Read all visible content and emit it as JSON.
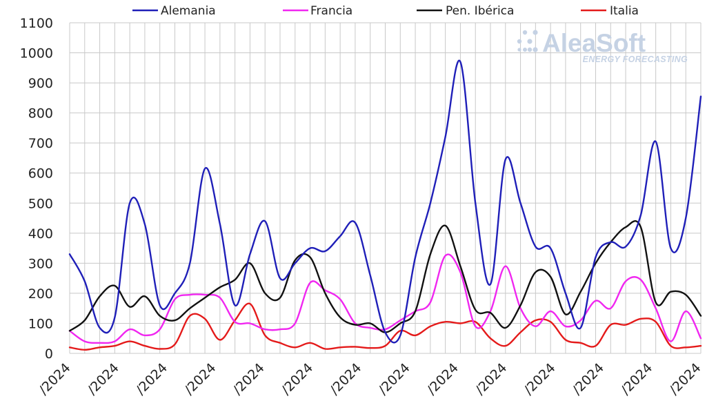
{
  "chart_data": {
    "type": "line",
    "title": "",
    "xlabel": "",
    "ylabel": "",
    "ylim": [
      0,
      1100
    ],
    "yticks": [
      0,
      100,
      200,
      300,
      400,
      500,
      600,
      700,
      800,
      900,
      1000,
      1100
    ],
    "grid": true,
    "legend_position": "top",
    "x_tick_labels": [
      "/2024",
      "/2024",
      "/2024",
      "/2024",
      "/2024",
      "/2024",
      "/2024",
      "/2024",
      "/2024",
      "/2024",
      "/2024",
      "/2024",
      "/2024",
      "/2024"
    ],
    "watermark": {
      "brand": "AleaSoft",
      "tagline": "ENERGY FORECASTING"
    },
    "series": [
      {
        "name": "Alemania",
        "color": "#1f1fb8",
        "values": [
          330,
          240,
          85,
          120,
          500,
          430,
          160,
          200,
          300,
          615,
          430,
          160,
          330,
          440,
          250,
          300,
          350,
          340,
          390,
          435,
          260,
          70,
          60,
          320,
          500,
          720,
          970,
          500,
          230,
          645,
          500,
          355,
          350,
          200,
          85,
          320,
          370,
          355,
          460,
          705,
          350,
          450,
          855
        ]
      },
      {
        "name": "Francia",
        "color": "#f027f0",
        "values": [
          75,
          40,
          35,
          40,
          80,
          60,
          80,
          180,
          195,
          195,
          185,
          105,
          100,
          80,
          80,
          100,
          235,
          210,
          180,
          100,
          85,
          80,
          110,
          140,
          170,
          325,
          270,
          90,
          140,
          290,
          150,
          90,
          140,
          90,
          110,
          175,
          150,
          240,
          245,
          150,
          40,
          140,
          50
        ]
      },
      {
        "name": "Pen. Ibérica",
        "color": "#111111",
        "values": [
          75,
          110,
          190,
          225,
          155,
          190,
          125,
          110,
          150,
          185,
          220,
          245,
          300,
          200,
          185,
          310,
          320,
          200,
          120,
          95,
          100,
          70,
          100,
          140,
          330,
          425,
          290,
          145,
          135,
          85,
          160,
          270,
          255,
          130,
          205,
          300,
          370,
          420,
          420,
          170,
          205,
          195,
          125
        ]
      },
      {
        "name": "Italia",
        "color": "#e41a1a",
        "values": [
          20,
          12,
          20,
          25,
          40,
          25,
          15,
          30,
          125,
          115,
          45,
          110,
          165,
          60,
          35,
          20,
          35,
          15,
          20,
          22,
          18,
          25,
          75,
          60,
          90,
          105,
          100,
          105,
          50,
          25,
          70,
          110,
          105,
          45,
          35,
          25,
          95,
          95,
          115,
          105,
          25,
          20,
          25
        ]
      }
    ]
  }
}
